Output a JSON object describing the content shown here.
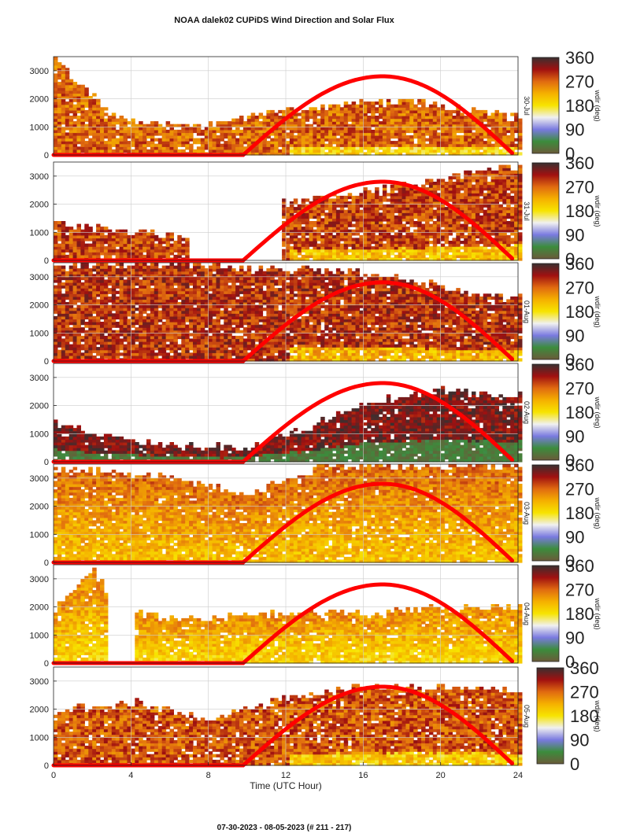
{
  "title": "NOAA dalek02 CUPiDS Wind Direction and Solar Flux",
  "footer": "07-30-2023 - 08-05-2023   (# 211 - 217)",
  "chart_data": {
    "type": "heatmap",
    "title": "NOAA dalek02 CUPiDS Wind Direction and Solar Flux",
    "xlabel": "Time (UTC Hour)",
    "xlim": [
      0,
      24
    ],
    "x_ticks": [
      0,
      4,
      8,
      12,
      16,
      20,
      24
    ],
    "ylim": [
      0,
      3500
    ],
    "y_ticks": [
      0,
      1000,
      2000,
      3000
    ],
    "colorbar": {
      "label": "wdir (deg)",
      "range": [
        0,
        360
      ],
      "ticks": [
        0,
        90,
        180,
        270,
        360
      ],
      "colors": [
        "#6b5a3a",
        "#3c8c3c",
        "#7a7ae0",
        "#f0f0f0",
        "#f7e400",
        "#f5b000",
        "#e06a10",
        "#a01010",
        "#3a3030"
      ]
    },
    "grid": true,
    "solar_flux_curve": {
      "color": "#ff0000",
      "sunrise_hour": 9.8,
      "peak_hour": 17.0,
      "sunset_hour": 23.8,
      "peak_height": 2800,
      "night_value": 0
    },
    "panels": [
      {
        "day_label": "30-Jul",
        "dominant": "mixed",
        "coverage": [
          [
            0,
            24
          ]
        ],
        "dominant_deg": 270,
        "top_profile": [
          [
            0,
            3400
          ],
          [
            3,
            1300
          ],
          [
            7,
            900
          ],
          [
            10,
            1300
          ],
          [
            14,
            1700
          ],
          [
            18,
            1900
          ],
          [
            22,
            1500
          ],
          [
            24,
            1300
          ]
        ]
      },
      {
        "day_label": "31-Jul",
        "dominant": "red-orange",
        "coverage": [
          [
            0,
            7
          ],
          [
            11.6,
            24
          ]
        ],
        "dominant_deg": 290,
        "top_profile": [
          [
            0,
            1300
          ],
          [
            5,
            900
          ],
          [
            7,
            700
          ],
          [
            11.6,
            2000
          ],
          [
            15,
            2300
          ],
          [
            19,
            2700
          ],
          [
            24,
            3400
          ]
        ]
      },
      {
        "day_label": "01-Aug",
        "dominant": "orange-dark",
        "coverage": [
          [
            0,
            24
          ]
        ],
        "dominant_deg": 300,
        "top_profile": [
          [
            0,
            3400
          ],
          [
            6,
            3400
          ],
          [
            10,
            3300
          ],
          [
            14,
            3200
          ],
          [
            18,
            2900
          ],
          [
            22,
            2300
          ],
          [
            24,
            2200
          ]
        ]
      },
      {
        "day_label": "02-Aug",
        "dominant": "dark-olive",
        "coverage": [
          [
            0,
            24
          ]
        ],
        "dominant_deg": 330,
        "top_profile": [
          [
            0,
            1300
          ],
          [
            5,
            600
          ],
          [
            10,
            400
          ],
          [
            13,
            1200
          ],
          [
            16,
            2100
          ],
          [
            20,
            2500
          ],
          [
            24,
            2300
          ]
        ]
      },
      {
        "day_label": "03-Aug",
        "dominant": "yellow",
        "coverage": [
          [
            0,
            24
          ]
        ],
        "dominant_deg": 240,
        "top_profile": [
          [
            0,
            3300
          ],
          [
            6,
            3000
          ],
          [
            10,
            2400
          ],
          [
            14,
            3400
          ],
          [
            20,
            3400
          ],
          [
            24,
            3400
          ]
        ]
      },
      {
        "day_label": "04-Aug",
        "dominant": "yellow",
        "coverage": [
          [
            0,
            2.8
          ],
          [
            4.1,
            24
          ]
        ],
        "dominant_deg": 220,
        "top_profile": [
          [
            0,
            1900
          ],
          [
            2,
            3400
          ],
          [
            3,
            2000
          ],
          [
            6,
            1500
          ],
          [
            10,
            1700
          ],
          [
            16,
            1700
          ],
          [
            20,
            1900
          ],
          [
            24,
            1900
          ]
        ]
      },
      {
        "day_label": "05-Aug",
        "dominant": "orange-dark",
        "coverage": [
          [
            0,
            24
          ]
        ],
        "dominant_deg": 280,
        "top_profile": [
          [
            0,
            1900
          ],
          [
            4,
            2200
          ],
          [
            8,
            1600
          ],
          [
            12,
            2300
          ],
          [
            16,
            2800
          ],
          [
            20,
            2700
          ],
          [
            24,
            2600
          ]
        ]
      }
    ]
  }
}
